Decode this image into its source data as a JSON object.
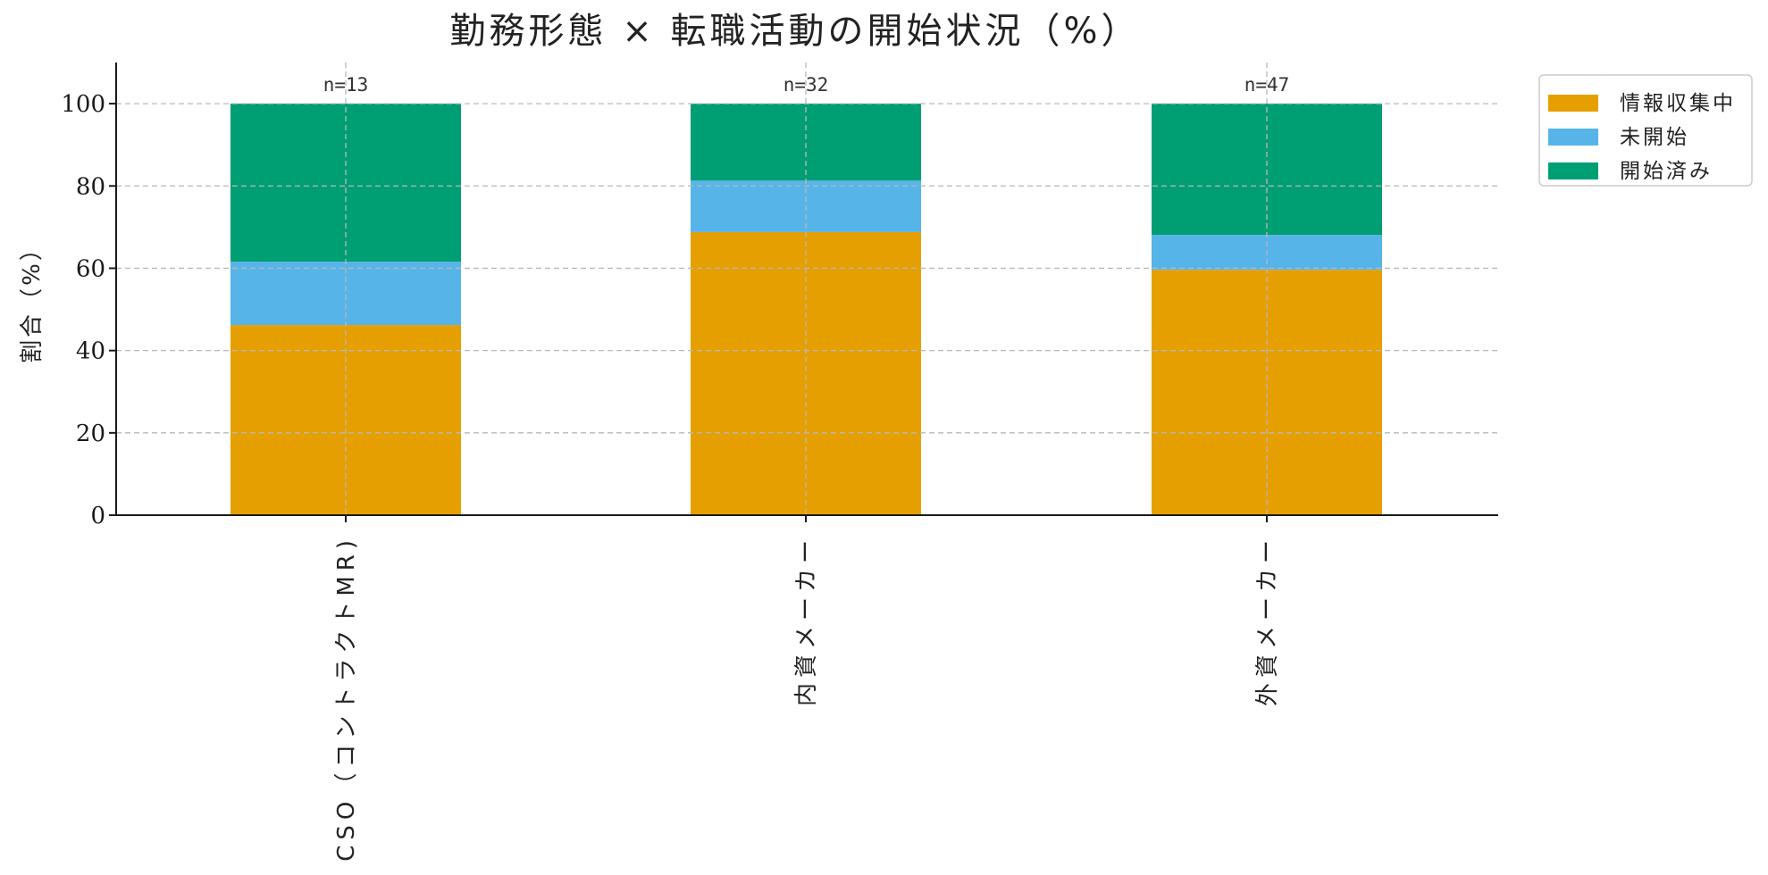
{
  "chart_data": {
    "type": "bar",
    "stacked": true,
    "title": "勤務形態 × 転職活動の開始状況（%）",
    "ylabel": "割合（%）",
    "xlabel": "",
    "ylim": [
      0,
      110
    ],
    "yticks": [
      0,
      20,
      40,
      60,
      80,
      100
    ],
    "grid": true,
    "legend_position": "top-right",
    "categories": [
      "CSO（コントラクトMR)",
      "内資メーカー",
      "外資メーカー"
    ],
    "n_labels": [
      "n=13",
      "n=32",
      "n=47"
    ],
    "series": [
      {
        "name": "情報収集中",
        "color": "#E69F00",
        "values": [
          46.2,
          68.8,
          59.6
        ]
      },
      {
        "name": "未開始",
        "color": "#56B4E9",
        "values": [
          15.4,
          12.5,
          8.5
        ]
      },
      {
        "name": "開始済み",
        "color": "#009E73",
        "values": [
          38.4,
          18.7,
          31.9
        ]
      }
    ]
  }
}
